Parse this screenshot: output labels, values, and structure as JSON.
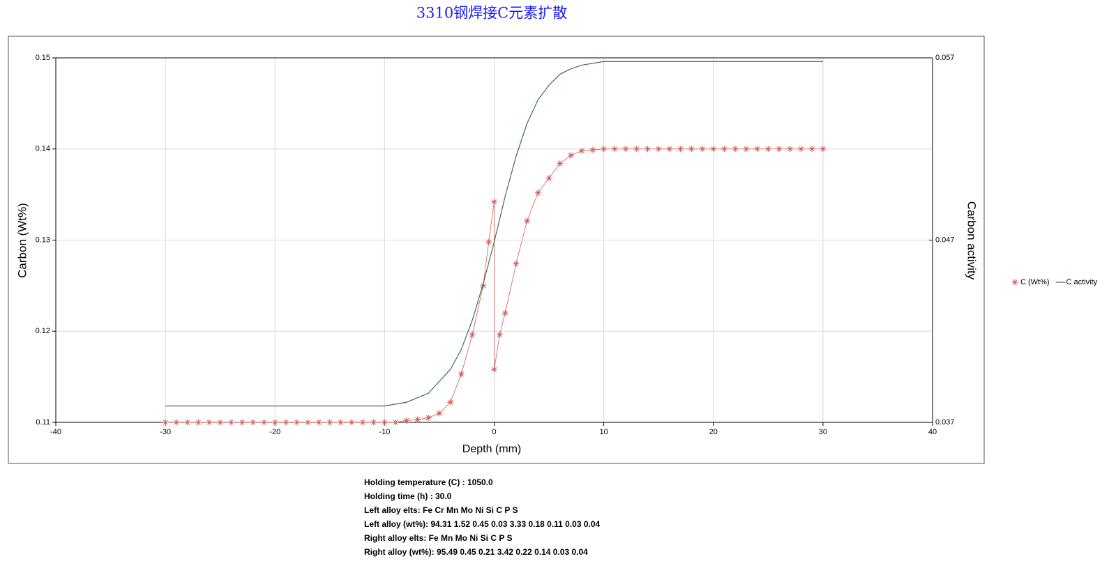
{
  "chart_data": {
    "type": "line",
    "title": "3310钢焊接C元素扩散",
    "x_label": "Depth (mm)",
    "y_label": "Carbon (Wt%)",
    "y2_label": "Carbon activity",
    "xlim": [
      -40,
      40
    ],
    "xticks": [
      -40,
      -30,
      -20,
      -10,
      0,
      10,
      20,
      30,
      40
    ],
    "ylim": [
      0.11,
      0.15
    ],
    "yticks": [
      0.11,
      0.12,
      0.13,
      0.14,
      0.15
    ],
    "y2lim": [
      0.037,
      0.057
    ],
    "y2ticks": [
      0.037,
      0.047,
      0.057
    ],
    "grid": true,
    "legend": "right",
    "series": [
      {
        "name": "C (Wt%)",
        "color": "#d05a5a",
        "marker": "star",
        "x": [
          -30,
          -29,
          -28,
          -27,
          -26,
          -25,
          -24,
          -23,
          -22,
          -21,
          -20,
          -19,
          -18,
          -17,
          -16,
          -15,
          -14,
          -13,
          -12,
          -11,
          -10,
          -9,
          -8,
          -7,
          -6,
          -5,
          -4,
          -3,
          -2,
          -1,
          -0.5,
          0,
          0,
          0.5,
          1,
          2,
          3,
          4,
          5,
          6,
          7,
          8,
          9,
          10,
          11,
          12,
          13,
          14,
          15,
          16,
          17,
          18,
          19,
          20,
          21,
          22,
          23,
          24,
          25,
          26,
          27,
          28,
          29,
          30
        ],
        "values": [
          0.11,
          0.11,
          0.11,
          0.11,
          0.11,
          0.11,
          0.11,
          0.11,
          0.11,
          0.11,
          0.11,
          0.11,
          0.11,
          0.11,
          0.11,
          0.11,
          0.11,
          0.11,
          0.11,
          0.11,
          0.11,
          0.11,
          0.1102,
          0.1103,
          0.1105,
          0.111,
          0.1122,
          0.1153,
          0.1196,
          0.125,
          0.1298,
          0.1342,
          0.1158,
          0.1196,
          0.122,
          0.1274,
          0.1321,
          0.1352,
          0.1368,
          0.1384,
          0.1393,
          0.1398,
          0.1399,
          0.14,
          0.14,
          0.14,
          0.14,
          0.14,
          0.14,
          0.14,
          0.14,
          0.14,
          0.14,
          0.14,
          0.14,
          0.14,
          0.14,
          0.14,
          0.14,
          0.14,
          0.14,
          0.14,
          0.14,
          0.14
        ]
      },
      {
        "name": "C activity",
        "color": "#3d6b5a",
        "axis": "y2",
        "x": [
          -30,
          -20,
          -10,
          -8,
          -6,
          -4,
          -3,
          -2,
          -1,
          0,
          1,
          2,
          3,
          4,
          5,
          6,
          7,
          8,
          10,
          20,
          30
        ],
        "values": [
          0.0379,
          0.0379,
          0.0379,
          0.0381,
          0.0386,
          0.0399,
          0.041,
          0.0426,
          0.0446,
          0.0469,
          0.0494,
          0.0516,
          0.0534,
          0.0547,
          0.0555,
          0.0561,
          0.0564,
          0.0566,
          0.0568,
          0.0568,
          0.0568
        ]
      }
    ],
    "notes": [
      "Holding temperature (C) : 1050.0",
      "Holding time (h) : 30.0",
      "Left alloy elts: Fe Cr Mn Mo Ni Si C P S",
      "Left alloy (wt%): 94.31 1.52 0.45 0.03 3.33 0.18 0.11 0.03 0.04",
      "Right alloy elts: Fe Mn Mo Ni Si C P S",
      "Right alloy (wt%): 95.49 0.45 0.21 3.42 0.22 0.14 0.03 0.04"
    ]
  }
}
